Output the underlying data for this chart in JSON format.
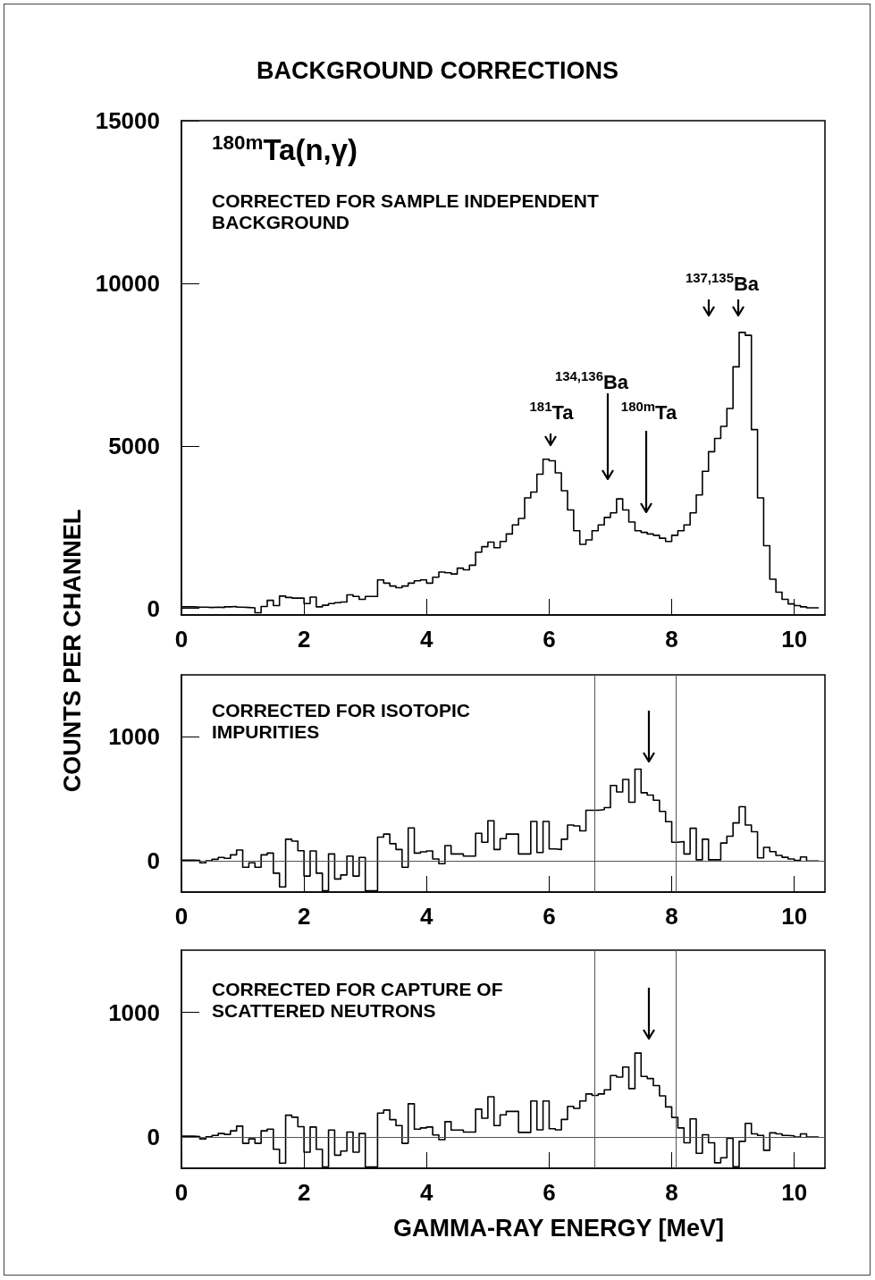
{
  "chart_data": [
    {
      "type": "step",
      "title": "BACKGROUND CORRECTIONS",
      "ylabel": "COUNTS PER CHANNEL",
      "annotations": [
        "$^{180m}$Ta(n,γ)",
        "CORRECTED FOR SAMPLE INDEPENDENT BACKGROUND",
        "$^{181}$Ta",
        "$^{134,136}$Ba",
        "$^{180m}$Ta",
        "$^{137,135}$Ba"
      ],
      "x": [
        0,
        0.1,
        0.2,
        0.3,
        0.4,
        0.5,
        0.6,
        0.7,
        0.8,
        0.9,
        1,
        1.1,
        1.2,
        1.3,
        1.4,
        1.5,
        1.6,
        1.7,
        1.8,
        1.9,
        2,
        2.1,
        2.2,
        2.3,
        2.4,
        2.5,
        2.6,
        2.7,
        2.8,
        2.9,
        3,
        3.1,
        3.2,
        3.3,
        3.4,
        3.5,
        3.6,
        3.7,
        3.8,
        3.9,
        4,
        4.1,
        4.2,
        4.3,
        4.4,
        4.5,
        4.6,
        4.7,
        4.8,
        4.9,
        5,
        5.1,
        5.2,
        5.3,
        5.4,
        5.5,
        5.6,
        5.7,
        5.8,
        5.9,
        6,
        6.1,
        6.2,
        6.3,
        6.4,
        6.5,
        6.6,
        6.7,
        6.8,
        6.9,
        7,
        7.1,
        7.2,
        7.3,
        7.4,
        7.5,
        7.6,
        7.7,
        7.8,
        7.9,
        8,
        8.1,
        8.2,
        8.3,
        8.4,
        8.5,
        8.6,
        8.7,
        8.8,
        8.9,
        9,
        9.1,
        9.2,
        9.3,
        9.4,
        9.5,
        9.6,
        9.7,
        9.8,
        9.9,
        10,
        10.1,
        10.2,
        10.3,
        10.4
      ],
      "values": [
        50,
        50,
        40,
        40,
        30,
        40,
        30,
        50,
        60,
        40,
        30,
        20,
        -130,
        60,
        250,
        90,
        380,
        340,
        320,
        320,
        150,
        350,
        50,
        100,
        150,
        180,
        200,
        420,
        370,
        280,
        370,
        370,
        880,
        780,
        690,
        640,
        690,
        780,
        850,
        880,
        780,
        960,
        1120,
        1100,
        1060,
        1240,
        1190,
        1330,
        1730,
        1900,
        2040,
        1870,
        2060,
        2290,
        2570,
        2770,
        3400,
        3580,
        4130,
        4590,
        4540,
        4170,
        3620,
        3030,
        2390,
        1970,
        2110,
        2390,
        2570,
        2800,
        2940,
        3370,
        3030,
        2660,
        2390,
        2340,
        2290,
        2250,
        2160,
        2060,
        2250,
        2390,
        2570,
        2940,
        3490,
        4220,
        4820,
        5230,
        5600,
        6150,
        7430,
        8490,
        8400,
        5500,
        3400,
        1930,
        900,
        500,
        280,
        140,
        90,
        50,
        20,
        20,
        20
      ],
      "color": "#000000",
      "xlim": [
        0,
        10.5
      ],
      "xticks": [
        0,
        2,
        4,
        6,
        8,
        10
      ],
      "ylim": [
        -200,
        15000
      ],
      "yticks": [
        0,
        5000,
        10000,
        15000
      ]
    },
    {
      "type": "step",
      "annotations": [
        "CORRECTED FOR ISOTOPIC IMPURITIES"
      ],
      "x": [
        0,
        0.1,
        0.2,
        0.3,
        0.4,
        0.5,
        0.6,
        0.7,
        0.8,
        0.9,
        1,
        1.1,
        1.2,
        1.3,
        1.4,
        1.5,
        1.6,
        1.7,
        1.8,
        1.9,
        2,
        2.1,
        2.2,
        2.3,
        2.4,
        2.5,
        2.6,
        2.7,
        2.8,
        2.9,
        3,
        3.1,
        3.2,
        3.3,
        3.4,
        3.5,
        3.6,
        3.7,
        3.8,
        3.9,
        4,
        4.1,
        4.2,
        4.3,
        4.4,
        4.5,
        4.6,
        4.7,
        4.8,
        4.9,
        5,
        5.1,
        5.2,
        5.3,
        5.4,
        5.5,
        5.6,
        5.7,
        5.8,
        5.9,
        6,
        6.1,
        6.2,
        6.3,
        6.4,
        6.5,
        6.6,
        6.7,
        6.8,
        6.9,
        7,
        7.1,
        7.2,
        7.3,
        7.4,
        7.5,
        7.6,
        7.7,
        7.8,
        7.9,
        8,
        8.1,
        8.2,
        8.3,
        8.4,
        8.5,
        8.6,
        8.7,
        8.8,
        8.9,
        9,
        9.1,
        9.2,
        9.3,
        9.4,
        9.5,
        9.6,
        9.7,
        9.8,
        9.9,
        10,
        10.1,
        10.2,
        10.3,
        10.4
      ],
      "values": [
        7,
        7,
        5,
        -14,
        2,
        14,
        29,
        22,
        50,
        88,
        -50,
        -14,
        -50,
        50,
        64,
        -98,
        -209,
        176,
        160,
        83,
        -121,
        81,
        -98,
        -240,
        57,
        -145,
        -112,
        40,
        -121,
        29,
        -240,
        -240,
        193,
        217,
        140,
        93,
        -50,
        267,
        64,
        74,
        81,
        17,
        -21,
        124,
        57,
        57,
        40,
        40,
        224,
        152,
        324,
        93,
        180,
        217,
        217,
        57,
        57,
        319,
        69,
        319,
        98,
        93,
        176,
        290,
        283,
        243,
        409,
        409,
        414,
        431,
        609,
        557,
        657,
        474,
        740,
        550,
        531,
        490,
        400,
        317,
        152,
        157,
        57,
        264,
        10,
        176,
        10,
        10,
        145,
        200,
        307,
        438,
        290,
        236,
        26,
        110,
        76,
        45,
        30,
        17,
        5,
        33,
        0,
        0,
        0
      ],
      "color": "#000000",
      "xlim": [
        0,
        10.5
      ],
      "xticks": [
        0,
        2,
        4,
        6,
        8,
        10
      ],
      "ylim": [
        -250,
        1500
      ],
      "yticks": [
        0,
        1000
      ],
      "ref_lines": [
        {
          "axis": "y",
          "value": 0
        },
        {
          "axis": "x",
          "value": 6.74
        },
        {
          "axis": "x",
          "value": 8.07
        }
      ]
    },
    {
      "type": "step",
      "xlabel": "GAMMA-RAY ENERGY [MeV]",
      "annotations": [
        "CORRECTED FOR CAPTURE OF SCATTERED NEUTRONS"
      ],
      "x": [
        0,
        0.1,
        0.2,
        0.3,
        0.4,
        0.5,
        0.6,
        0.7,
        0.8,
        0.9,
        1,
        1.1,
        1.2,
        1.3,
        1.4,
        1.5,
        1.6,
        1.7,
        1.8,
        1.9,
        2,
        2.1,
        2.2,
        2.3,
        2.4,
        2.5,
        2.6,
        2.7,
        2.8,
        2.9,
        3,
        3.1,
        3.2,
        3.3,
        3.4,
        3.5,
        3.6,
        3.7,
        3.8,
        3.9,
        4,
        4.1,
        4.2,
        4.3,
        4.4,
        4.5,
        4.6,
        4.7,
        4.8,
        4.9,
        5,
        5.1,
        5.2,
        5.3,
        5.4,
        5.5,
        5.6,
        5.7,
        5.8,
        5.9,
        6,
        6.1,
        6.2,
        6.3,
        6.4,
        6.5,
        6.6,
        6.7,
        6.8,
        6.9,
        7,
        7.1,
        7.2,
        7.3,
        7.4,
        7.5,
        7.6,
        7.7,
        7.8,
        7.9,
        8,
        8.1,
        8.2,
        8.3,
        8.4,
        8.5,
        8.6,
        8.7,
        8.8,
        8.9,
        9,
        9.1,
        9.2,
        9.3,
        9.4,
        9.5,
        9.6,
        9.7,
        9.8,
        9.9,
        10,
        10.1,
        10.2,
        10.3,
        10.4
      ],
      "values": [
        7,
        7,
        5,
        -14,
        2,
        14,
        29,
        22,
        50,
        88,
        -50,
        -14,
        -50,
        50,
        64,
        -98,
        -209,
        176,
        160,
        83,
        -121,
        81,
        -98,
        -240,
        57,
        -145,
        -112,
        40,
        -121,
        29,
        -240,
        -240,
        193,
        217,
        140,
        93,
        -50,
        267,
        64,
        74,
        81,
        17,
        -21,
        124,
        57,
        57,
        40,
        40,
        224,
        152,
        324,
        93,
        178,
        206,
        206,
        38,
        38,
        290,
        58,
        290,
        67,
        58,
        142,
        247,
        230,
        290,
        346,
        334,
        346,
        379,
        494,
        482,
        562,
        389,
        674,
        487,
        470,
        413,
        331,
        242,
        158,
        74,
        -46,
        146,
        -130,
        19,
        -46,
        -206,
        -166,
        -10,
        -238,
        -34,
        110,
        26,
        14,
        -106,
        34,
        26,
        14,
        10,
        0,
        26,
        0,
        0,
        0
      ],
      "color": "#000000",
      "xlim": [
        0,
        10.5
      ],
      "xticks": [
        0,
        2,
        4,
        6,
        8,
        10
      ],
      "ylim": [
        -250,
        1500
      ],
      "yticks": [
        0,
        1000
      ],
      "ref_lines": [
        {
          "axis": "y",
          "value": 0
        },
        {
          "axis": "x",
          "value": 6.74
        },
        {
          "axis": "x",
          "value": 8.07
        }
      ]
    }
  ]
}
